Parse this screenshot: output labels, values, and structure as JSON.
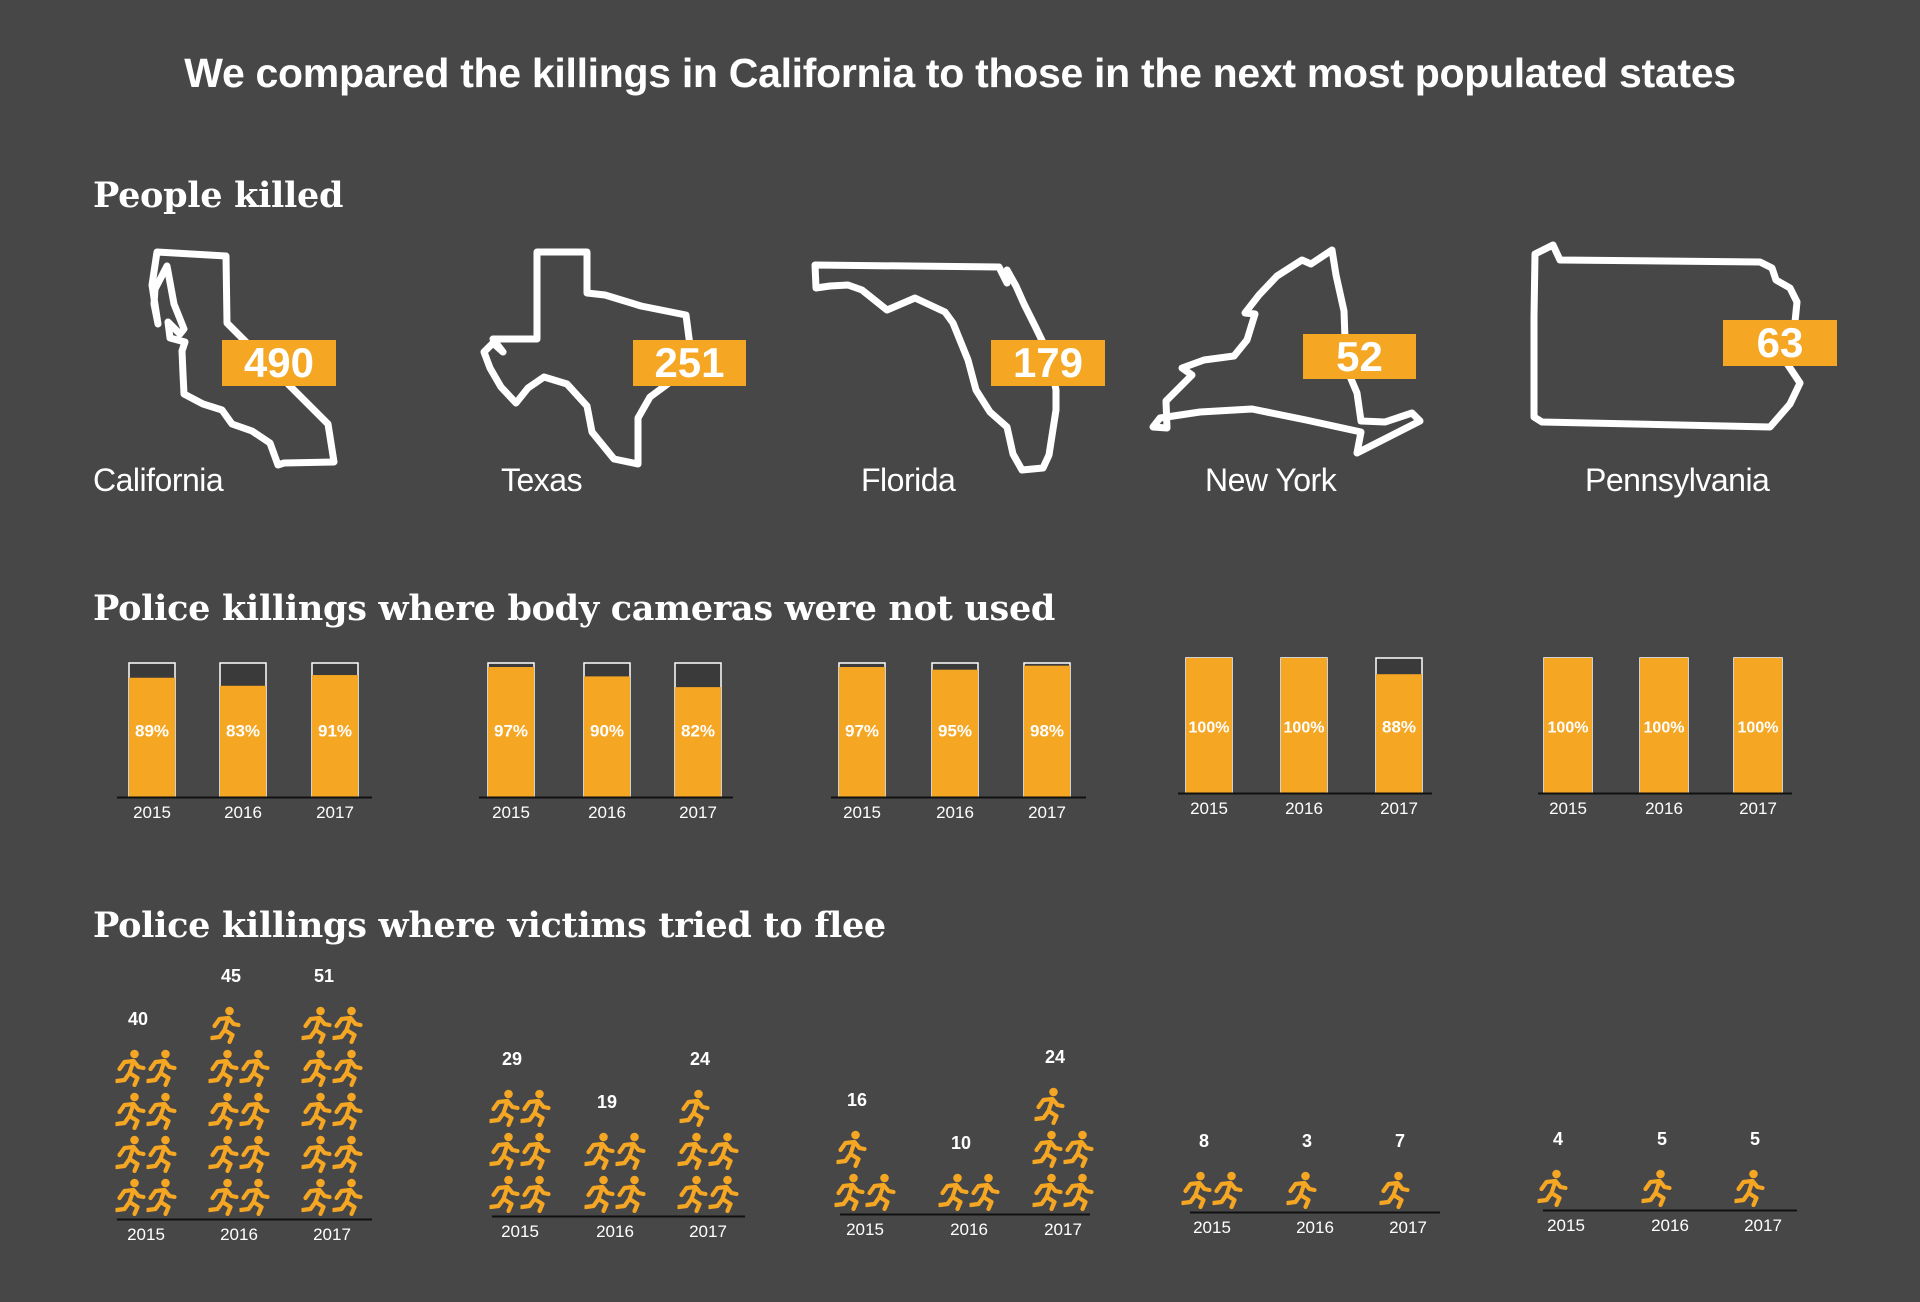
{
  "title": "We compared the killings in California to those in the next most populated states",
  "sections": {
    "people_killed": "People killed",
    "body_cameras": "Police killings where body cameras were not used",
    "fled": "Police killings where victims tried to flee"
  },
  "colors": {
    "background": "#474747",
    "accent": "#f5a623",
    "text": "#ffffff",
    "empty": "#3a3a3a"
  },
  "icons": {
    "state_outline": "state-outline-icon",
    "runner": "running-person-icon"
  },
  "states": [
    {
      "name": "California",
      "killed": "490"
    },
    {
      "name": "Texas",
      "killed": "251"
    },
    {
      "name": "Florida",
      "killed": "179"
    },
    {
      "name": "New York",
      "killed": "52"
    },
    {
      "name": "Pennsylvania",
      "killed": "63"
    }
  ],
  "chart_data": [
    {
      "type": "bar",
      "title": "Police killings where body cameras were not used",
      "unit": "percent",
      "categories": [
        "2015",
        "2016",
        "2017"
      ],
      "ylim": [
        0,
        100
      ],
      "series": [
        {
          "name": "California",
          "values": [
            89,
            83,
            91
          ],
          "labels": [
            "89%",
            "83%",
            "91%"
          ]
        },
        {
          "name": "Texas",
          "values": [
            97,
            90,
            82
          ],
          "labels": [
            "97%",
            "90%",
            "82%"
          ]
        },
        {
          "name": "Florida",
          "values": [
            97,
            95,
            98
          ],
          "labels": [
            "97%",
            "95%",
            "98%"
          ]
        },
        {
          "name": "New York",
          "values": [
            100,
            100,
            88
          ],
          "labels": [
            "100%",
            "100%",
            "88%"
          ]
        },
        {
          "name": "Pennsylvania",
          "values": [
            100,
            100,
            100
          ],
          "labels": [
            "100%",
            "100%",
            "100%"
          ]
        }
      ]
    },
    {
      "type": "bar",
      "title": "Police killings where victims tried to flee",
      "unit": "count (each icon represents 5 people)",
      "categories": [
        "2015",
        "2016",
        "2017"
      ],
      "series": [
        {
          "name": "California",
          "values": [
            40,
            45,
            51
          ],
          "labels": [
            "40",
            "45",
            "51"
          ]
        },
        {
          "name": "Texas",
          "values": [
            29,
            19,
            24
          ],
          "labels": [
            "29",
            "19",
            "24"
          ]
        },
        {
          "name": "Florida",
          "values": [
            16,
            10,
            24
          ],
          "labels": [
            "16",
            "10",
            "24"
          ]
        },
        {
          "name": "New York",
          "values": [
            8,
            3,
            7
          ],
          "labels": [
            "8",
            "3",
            "7"
          ]
        },
        {
          "name": "Pennsylvania",
          "values": [
            4,
            5,
            5
          ],
          "labels": [
            "4",
            "5",
            "5"
          ]
        }
      ]
    }
  ]
}
